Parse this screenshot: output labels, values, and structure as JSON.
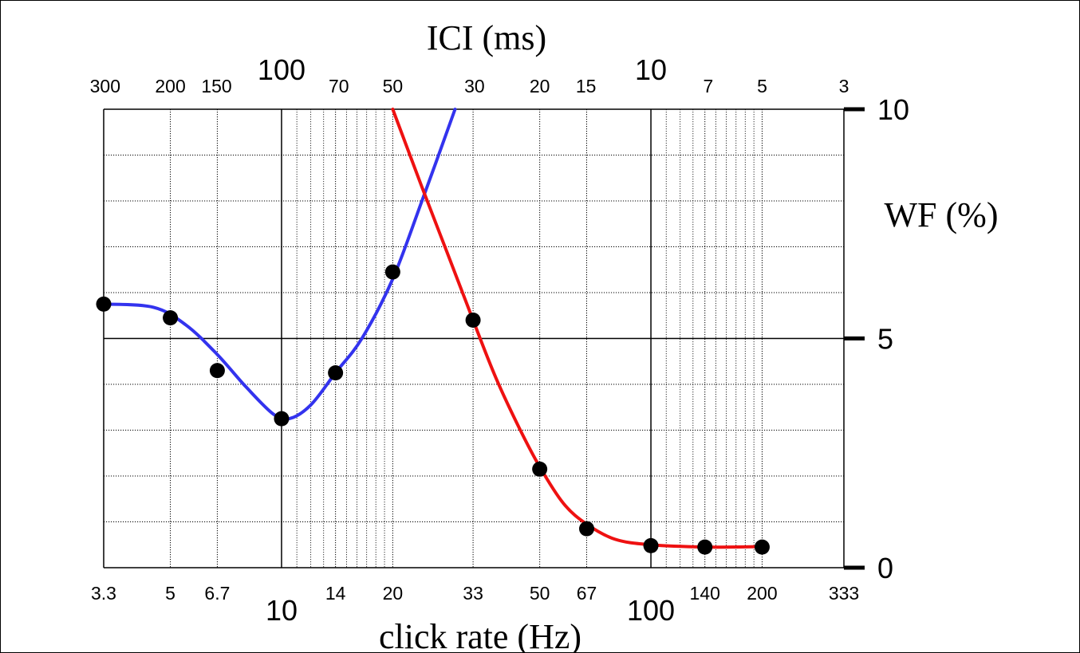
{
  "chart_data": {
    "type": "line",
    "x_scale": "log",
    "xlim": [
      3.3,
      333
    ],
    "ylim": [
      0,
      10
    ],
    "grid": true,
    "top_axis_label": "ICI (ms)",
    "xlabel": "click rate (Hz)",
    "ylabel": "WF (%)",
    "bottom_ticks": [
      {
        "value": 3.3,
        "label": "3.3",
        "major": false
      },
      {
        "value": 5,
        "label": "5",
        "major": false
      },
      {
        "value": 6.7,
        "label": "6.7",
        "major": false
      },
      {
        "value": 10,
        "label": "10",
        "major": true
      },
      {
        "value": 14,
        "label": "14",
        "major": false
      },
      {
        "value": 20,
        "label": "20",
        "major": false
      },
      {
        "value": 33,
        "label": "33",
        "major": false
      },
      {
        "value": 50,
        "label": "50",
        "major": false
      },
      {
        "value": 67,
        "label": "67",
        "major": false
      },
      {
        "value": 100,
        "label": "100",
        "major": true
      },
      {
        "value": 140,
        "label": "140",
        "major": false
      },
      {
        "value": 200,
        "label": "200",
        "major": false
      },
      {
        "value": 333,
        "label": "333",
        "major": false
      }
    ],
    "top_ticks": [
      {
        "value": 3.33,
        "label": "300",
        "major": false
      },
      {
        "value": 5,
        "label": "200",
        "major": false
      },
      {
        "value": 6.67,
        "label": "150",
        "major": false
      },
      {
        "value": 10,
        "label": "100",
        "major": true
      },
      {
        "value": 14.29,
        "label": "70",
        "major": false
      },
      {
        "value": 20,
        "label": "50",
        "major": false
      },
      {
        "value": 33.3,
        "label": "30",
        "major": false
      },
      {
        "value": 50,
        "label": "20",
        "major": false
      },
      {
        "value": 66.7,
        "label": "15",
        "major": false
      },
      {
        "value": 100,
        "label": "10",
        "major": true
      },
      {
        "value": 142.9,
        "label": "7",
        "major": false
      },
      {
        "value": 200,
        "label": "5",
        "major": false
      },
      {
        "value": 333,
        "label": "3",
        "major": false
      }
    ],
    "y_ticks": [
      {
        "value": 0,
        "label": "0"
      },
      {
        "value": 5,
        "label": "5"
      },
      {
        "value": 10,
        "label": "10"
      }
    ],
    "y_minor_grid": [
      1,
      2,
      3,
      4,
      6,
      7,
      8,
      9
    ],
    "x_minor_grid": [
      11,
      12,
      13,
      15,
      16,
      17,
      18,
      19,
      110,
      120,
      130,
      150,
      160,
      170,
      180,
      190
    ],
    "x_major_grid": [
      10,
      100
    ],
    "series": [
      {
        "color": "#3333ee",
        "points": [
          [
            3.3,
            5.75
          ],
          [
            5,
            5.45
          ],
          [
            6.7,
            4.3
          ],
          [
            10,
            3.25
          ],
          [
            14,
            4.25
          ],
          [
            20,
            6.45
          ]
        ],
        "curve": [
          [
            3.3,
            5.75
          ],
          [
            4.5,
            5.68
          ],
          [
            5.5,
            5.3
          ],
          [
            6.7,
            4.65
          ],
          [
            8,
            3.95
          ],
          [
            9.5,
            3.35
          ],
          [
            10.5,
            3.25
          ],
          [
            12,
            3.55
          ],
          [
            14,
            4.25
          ],
          [
            16.5,
            5.0
          ],
          [
            20,
            6.3
          ],
          [
            24,
            8.0
          ],
          [
            29.5,
            10.0
          ]
        ]
      },
      {
        "color": "#ee1111",
        "points": [
          [
            33,
            5.4
          ],
          [
            50,
            2.15
          ],
          [
            67,
            0.85
          ],
          [
            100,
            0.48
          ],
          [
            140,
            0.45
          ],
          [
            200,
            0.45
          ]
        ],
        "curve": [
          [
            20,
            10.0
          ],
          [
            24,
            8.3
          ],
          [
            28,
            6.9
          ],
          [
            33,
            5.4
          ],
          [
            38,
            4.15
          ],
          [
            44,
            3.05
          ],
          [
            50,
            2.2
          ],
          [
            58,
            1.4
          ],
          [
            67,
            0.95
          ],
          [
            80,
            0.62
          ],
          [
            100,
            0.5
          ],
          [
            140,
            0.45
          ],
          [
            200,
            0.46
          ]
        ]
      }
    ]
  }
}
